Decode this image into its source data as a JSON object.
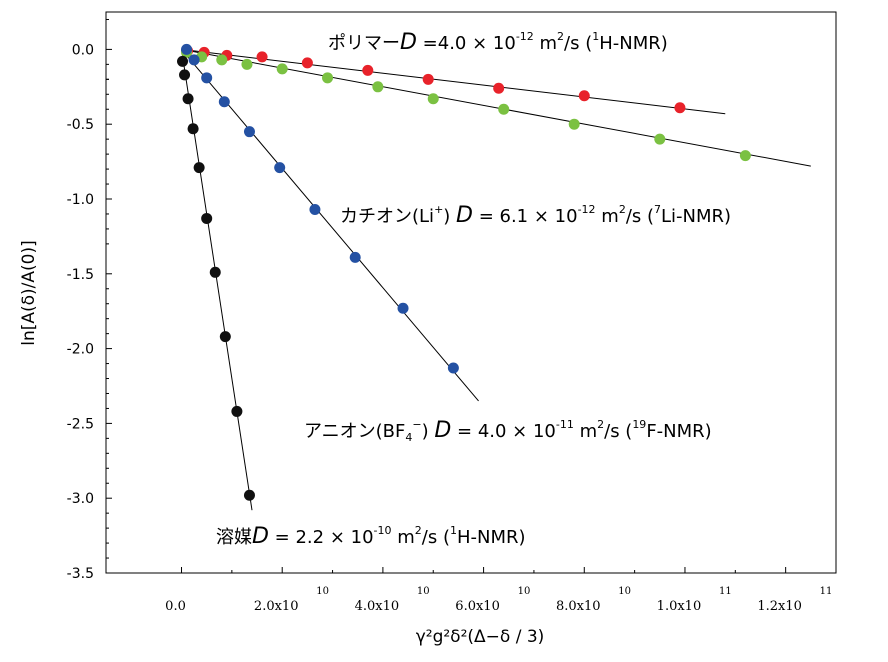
{
  "chart_data": {
    "type": "scatter",
    "title": "",
    "xlabel": "γ²g²δ²(Δ−δ / 3)",
    "ylabel": "ln[A(δ)/A(0)]",
    "xlim": [
      -15000000000,
      130000000000
    ],
    "ylim": [
      -3.5,
      0.25
    ],
    "x_ticks": [
      {
        "label": "0.0",
        "exp": "",
        "value": 0
      },
      {
        "label": "2.0x10",
        "exp": "10",
        "value": 20000000000
      },
      {
        "label": "4.0x10",
        "exp": "10",
        "value": 40000000000
      },
      {
        "label": "6.0x10",
        "exp": "10",
        "value": 60000000000
      },
      {
        "label": "8.0x10",
        "exp": "10",
        "value": 80000000000
      },
      {
        "label": "1.0x10",
        "exp": "11",
        "value": 100000000000
      },
      {
        "label": "1.2x10",
        "exp": "11",
        "value": 120000000000
      }
    ],
    "y_ticks": [
      {
        "label": "0.0",
        "value": 0
      },
      {
        "label": "-0.5",
        "value": -0.5
      },
      {
        "label": "-1.0",
        "value": -1.0
      },
      {
        "label": "-1.5",
        "value": -1.5
      },
      {
        "label": "-2.0",
        "value": -2.0
      },
      {
        "label": "-2.5",
        "value": -2.5
      },
      {
        "label": "-3.0",
        "value": -3.0
      },
      {
        "label": "-3.5",
        "value": -3.5
      }
    ],
    "series": [
      {
        "name": "ポリマー",
        "color": "#e8222a",
        "points": [
          [
            1200000000.0,
            -0.01
          ],
          [
            4500000000.0,
            -0.02
          ],
          [
            9000000000.0,
            -0.04
          ],
          [
            16000000000.0,
            -0.05
          ],
          [
            25000000000.0,
            -0.09
          ],
          [
            37000000000.0,
            -0.14
          ],
          [
            49000000000.0,
            -0.2
          ],
          [
            63000000000.0,
            -0.26
          ],
          [
            80000000000.0,
            -0.31
          ],
          [
            99000000000.0,
            -0.39
          ]
        ],
        "line": [
          [
            0,
            0.0
          ],
          [
            108000000000.0,
            -0.43
          ]
        ]
      },
      {
        "name": "カチオン",
        "color": "#7bc142",
        "points": [
          [
            1000000000.0,
            -0.02
          ],
          [
            4000000000.0,
            -0.05
          ],
          [
            8000000000.0,
            -0.07
          ],
          [
            13000000000.0,
            -0.1
          ],
          [
            20000000000.0,
            -0.13
          ],
          [
            29000000000.0,
            -0.19
          ],
          [
            39000000000.0,
            -0.25
          ],
          [
            50000000000.0,
            -0.33
          ],
          [
            64000000000.0,
            -0.4
          ],
          [
            78000000000.0,
            -0.5
          ],
          [
            95000000000.0,
            -0.6
          ],
          [
            112000000000.0,
            -0.71
          ]
        ],
        "line": [
          [
            0,
            0.0
          ],
          [
            125000000000.0,
            -0.78
          ]
        ]
      },
      {
        "name": "アニオン",
        "color": "#2451a3",
        "points": [
          [
            1000000000.0,
            0.0
          ],
          [
            2500000000.0,
            -0.07
          ],
          [
            5000000000.0,
            -0.19
          ],
          [
            8500000000.0,
            -0.35
          ],
          [
            13500000000.0,
            -0.55
          ],
          [
            19500000000.0,
            -0.79
          ],
          [
            26500000000.0,
            -1.07
          ],
          [
            34500000000.0,
            -1.39
          ],
          [
            44000000000.0,
            -1.73
          ],
          [
            54000000000.0,
            -2.13
          ]
        ],
        "line": [
          [
            0,
            0.0
          ],
          [
            59000000000.0,
            -2.35
          ]
        ]
      },
      {
        "name": "溶媒",
        "color": "#101010",
        "points": [
          [
            200000000.0,
            -0.08
          ],
          [
            600000000.0,
            -0.17
          ],
          [
            1300000000.0,
            -0.33
          ],
          [
            2300000000.0,
            -0.53
          ],
          [
            3500000000.0,
            -0.79
          ],
          [
            5000000000.0,
            -1.13
          ],
          [
            6700000000.0,
            -1.49
          ],
          [
            8700000000.0,
            -1.92
          ],
          [
            11000000000.0,
            -2.42
          ],
          [
            13500000000.0,
            -2.98
          ]
        ],
        "line": [
          [
            0,
            0.0
          ],
          [
            14000000000.0,
            -3.08
          ]
        ]
      }
    ],
    "annotations": [
      {
        "name": "polymer",
        "prefix": "ポリマー",
        "D": "D",
        "eq": " =4.0 × 10",
        "exp": "-12",
        "unit": " m",
        "unit_exp": "2",
        "unit_rest": "/s (",
        "iso_sup": "1",
        "nmr": "H-NMR)"
      },
      {
        "name": "cation",
        "prefix": "カチオン(Li",
        "prefix_sup": "+",
        "prefix_close": ") ",
        "D": "D",
        "eq": " = 6.1 × 10",
        "exp": "-12",
        "unit": " m",
        "unit_exp": "2",
        "unit_rest": "/s (",
        "iso_sup": "7",
        "nmr": "Li-NMR)"
      },
      {
        "name": "anion",
        "prefix": "アニオン(BF",
        "prefix_sub": "4",
        "prefix_sup": "−",
        "prefix_close": ") ",
        "D": "D",
        "eq": " = 4.0 × 10",
        "exp": "-11",
        "unit": " m",
        "unit_exp": "2",
        "unit_rest": "/s (",
        "iso_sup": "19",
        "nmr": "F-NMR)"
      },
      {
        "name": "solvent",
        "prefix": "溶媒",
        "D": "D",
        "eq": " = 2.2 × 10",
        "exp": "-10",
        "unit": " m",
        "unit_exp": "2",
        "unit_rest": "/s (",
        "iso_sup": "1",
        "nmr": "H-NMR)"
      }
    ]
  }
}
